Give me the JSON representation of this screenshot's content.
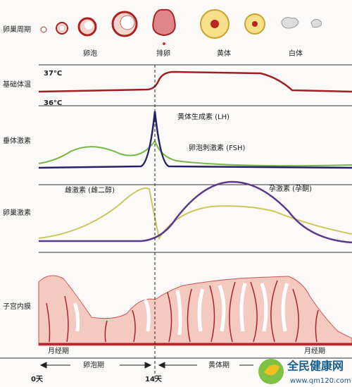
{
  "rows": [
    "卵巢周期",
    "基础体温",
    "垂体激素",
    "卵巢激素",
    "子宫内膜"
  ],
  "ovary_stages": [
    "卵泡",
    "排卵",
    "黄体",
    "白体"
  ],
  "temperature": {
    "high": "37°C",
    "low": "36°C"
  },
  "pituitary": {
    "lh": "黄体生成素 (LH)",
    "fsh": "卵泡刺激素 (FSH)"
  },
  "ovarian_hormones": {
    "estrogen": "雌激素 (雌二醇)",
    "progesterone": "孕激素 (孕酮)"
  },
  "endometrium": {
    "left": "月经期",
    "right": "月经期"
  },
  "timeline": {
    "start": "0天",
    "follicular": "卵泡期",
    "mid": "14天",
    "luteal": "黄体期"
  },
  "watermark": {
    "name": "全民健康网",
    "url": "www.qm120.com"
  }
}
